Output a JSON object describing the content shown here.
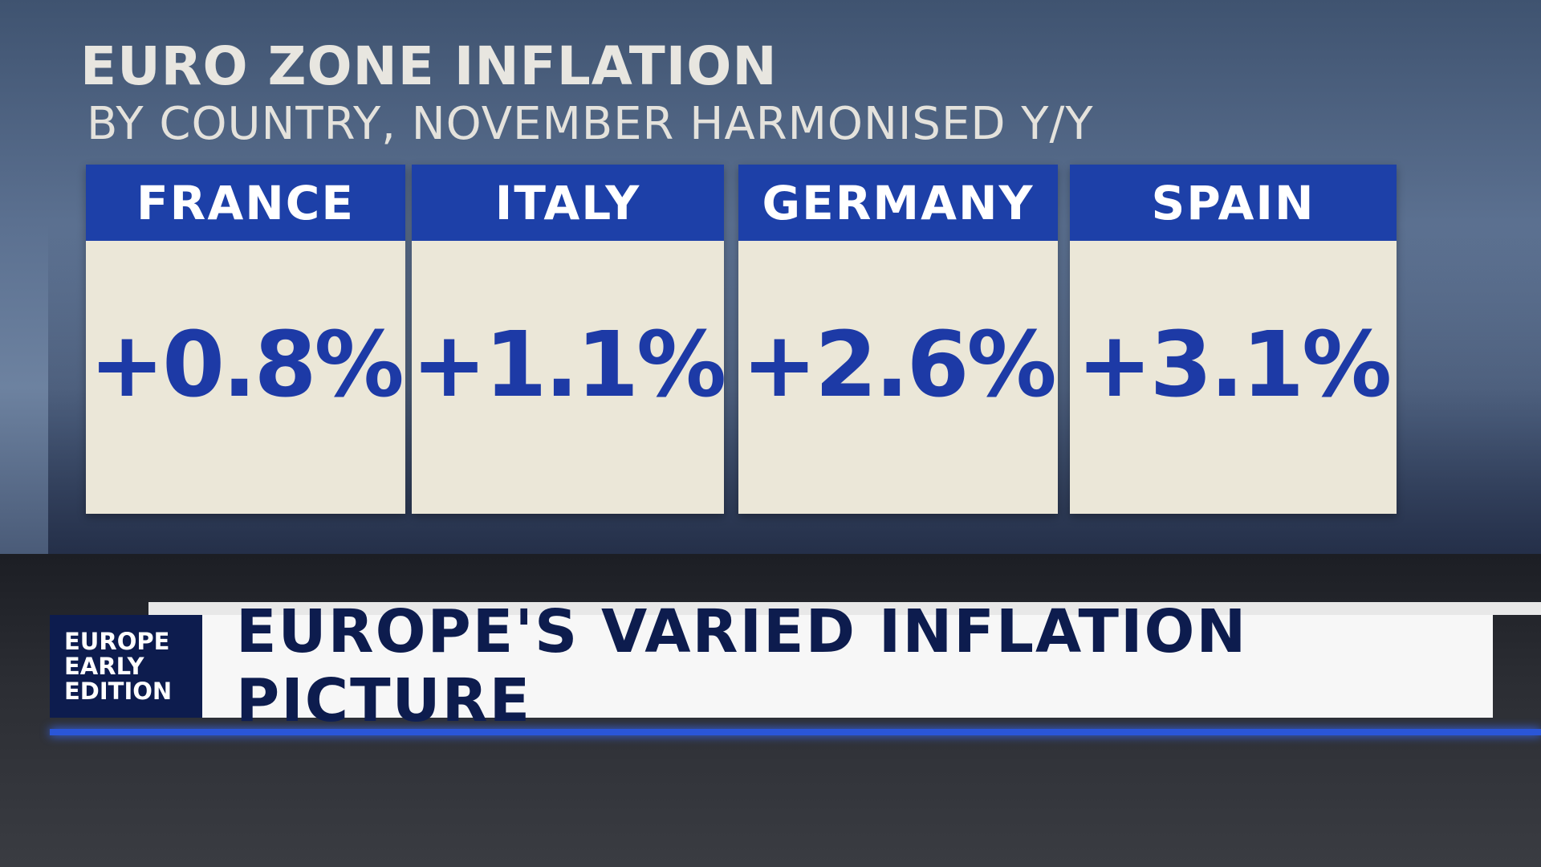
{
  "header": {
    "title": "EURO ZONE INFLATION",
    "subtitle": "BY COUNTRY, NOVEMBER HARMONISED Y/Y"
  },
  "cards": [
    {
      "country": "FRANCE",
      "value": "+0.8%"
    },
    {
      "country": "ITALY",
      "value": "+1.1%"
    },
    {
      "country": "GERMANY",
      "value": "+2.6%"
    },
    {
      "country": "SPAIN",
      "value": "+3.1%"
    }
  ],
  "lower_third": {
    "brand": [
      "EUROPE",
      "EARLY",
      "EDITION"
    ],
    "headline": "EUROPE'S VARIED INFLATION PICTURE"
  }
}
